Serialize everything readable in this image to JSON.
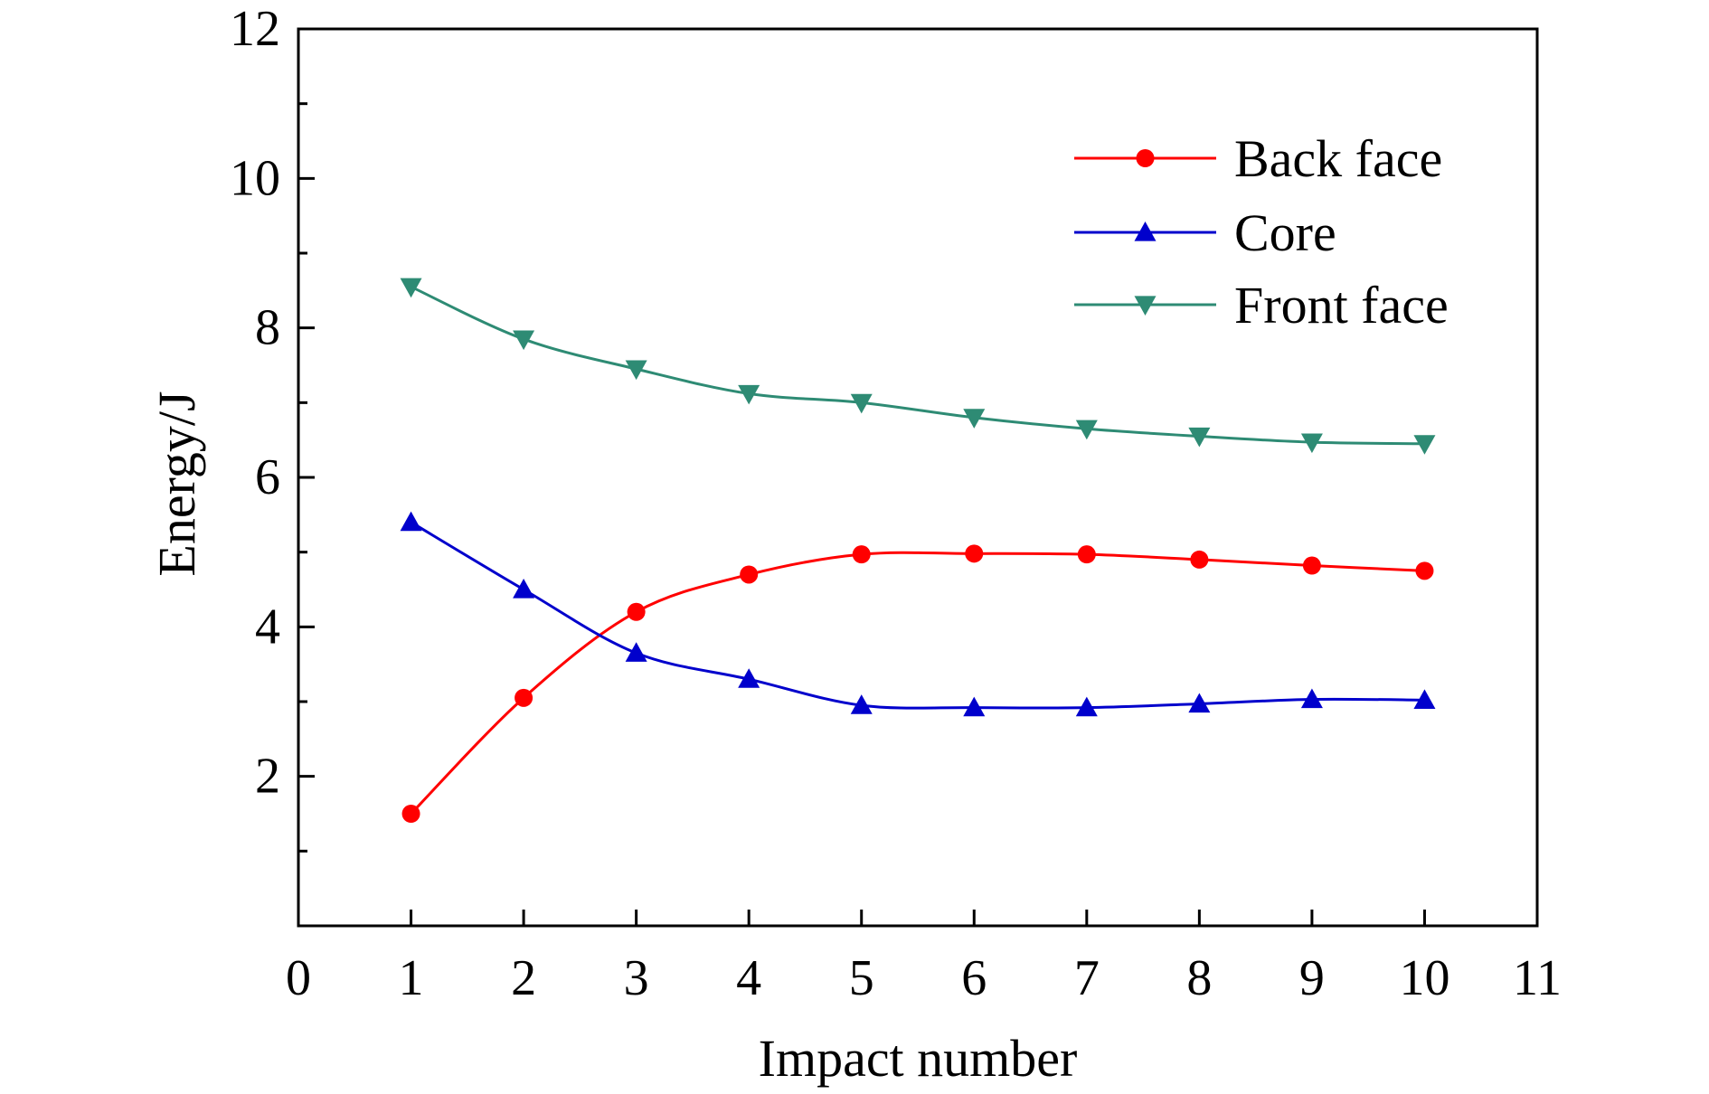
{
  "chart_data": {
    "type": "line",
    "title": "",
    "xlabel": "Impact number",
    "ylabel": "Energy/J",
    "xlim": [
      0,
      11
    ],
    "ylim": [
      0,
      12
    ],
    "x_ticks": [
      "0",
      "1",
      "2",
      "3",
      "4",
      "5",
      "6",
      "7",
      "8",
      "9",
      "10",
      "11"
    ],
    "y_ticks": [
      "2",
      "4",
      "6",
      "8",
      "10",
      "12"
    ],
    "y_tick_values": [
      2,
      4,
      6,
      8,
      10,
      12
    ],
    "y_minor_ticks": [
      1,
      3,
      5,
      7,
      9,
      11
    ],
    "grid": false,
    "legend_position": "top-right",
    "x": [
      1,
      2,
      3,
      4,
      5,
      6,
      7,
      8,
      9,
      10
    ],
    "series": [
      {
        "name": "Back face",
        "color": "#ff0000",
        "marker": "circle",
        "values": [
          1.5,
          3.05,
          4.2,
          4.7,
          4.97,
          4.98,
          4.97,
          4.9,
          4.82,
          4.75
        ]
      },
      {
        "name": "Core",
        "color": "#0000cc",
        "marker": "triangle-up",
        "values": [
          5.4,
          4.5,
          3.65,
          3.3,
          2.95,
          2.92,
          2.92,
          2.97,
          3.03,
          3.02
        ]
      },
      {
        "name": "Front face",
        "color": "#2e8b74",
        "marker": "triangle-down",
        "values": [
          8.55,
          7.85,
          7.45,
          7.12,
          7.0,
          6.8,
          6.65,
          6.55,
          6.47,
          6.45
        ]
      }
    ]
  }
}
